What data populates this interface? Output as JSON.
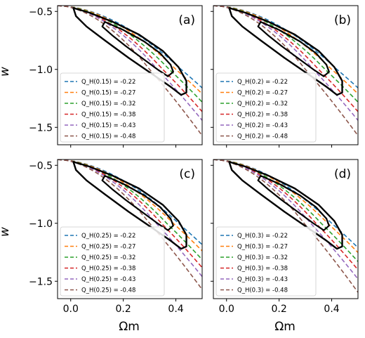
{
  "chart_data": {
    "type": "line",
    "xlabel": "Ωm",
    "ylabel": "w",
    "xlim": [
      -0.05,
      0.5
    ],
    "ylim": [
      -1.65,
      -0.45
    ],
    "xticks": [
      "0.0",
      "0.2",
      "0.4"
    ],
    "yticks": [
      "−0.5",
      "−1.0",
      "−1.5"
    ],
    "legend_placement": "lower-left",
    "colors": [
      "#1f77b4",
      "#ff7f0e",
      "#2ca02c",
      "#d62728",
      "#9467bd",
      "#8c564b"
    ],
    "contour_color": "#000000",
    "panels": [
      {
        "label": "(a)",
        "z": "0.15",
        "series": [
          {
            "name": "Q_H(0.15) = -0.22",
            "qh": -0.22,
            "omega_at_w_minus1": 0.42
          },
          {
            "name": "Q_H(0.15) = -0.27",
            "qh": -0.27,
            "omega_at_w_minus1": 0.4
          },
          {
            "name": "Q_H(0.15) = -0.32",
            "qh": -0.32,
            "omega_at_w_minus1": 0.375
          },
          {
            "name": "Q_H(0.15) = -0.38",
            "qh": -0.38,
            "omega_at_w_minus1": 0.35
          },
          {
            "name": "Q_H(0.15) = -0.43",
            "qh": -0.43,
            "omega_at_w_minus1": 0.33
          },
          {
            "name": "Q_H(0.15) = -0.48",
            "qh": -0.48,
            "omega_at_w_minus1": 0.3
          }
        ]
      },
      {
        "label": "(b)",
        "z": "0.2",
        "series": [
          {
            "name": "Q_H(0.2) = -0.22",
            "qh": -0.22,
            "omega_at_w_minus1": 0.42
          },
          {
            "name": "Q_H(0.2) = -0.27",
            "qh": -0.27,
            "omega_at_w_minus1": 0.4
          },
          {
            "name": "Q_H(0.2) = -0.32",
            "qh": -0.32,
            "omega_at_w_minus1": 0.375
          },
          {
            "name": "Q_H(0.2) = -0.38",
            "qh": -0.38,
            "omega_at_w_minus1": 0.35
          },
          {
            "name": "Q_H(0.2) = -0.43",
            "qh": -0.43,
            "omega_at_w_minus1": 0.33
          },
          {
            "name": "Q_H(0.2) = -0.48",
            "qh": -0.48,
            "omega_at_w_minus1": 0.3
          }
        ]
      },
      {
        "label": "(c)",
        "z": "0.25",
        "series": [
          {
            "name": "Q_H(0.25) = -0.22",
            "qh": -0.22,
            "omega_at_w_minus1": 0.41
          },
          {
            "name": "Q_H(0.25) = -0.27",
            "qh": -0.27,
            "omega_at_w_minus1": 0.39
          },
          {
            "name": "Q_H(0.25) = -0.32",
            "qh": -0.32,
            "omega_at_w_minus1": 0.365
          },
          {
            "name": "Q_H(0.25) = -0.38",
            "qh": -0.38,
            "omega_at_w_minus1": 0.345
          },
          {
            "name": "Q_H(0.25) = -0.43",
            "qh": -0.43,
            "omega_at_w_minus1": 0.325
          },
          {
            "name": "Q_H(0.25) = -0.48",
            "qh": -0.48,
            "omega_at_w_minus1": 0.3
          }
        ]
      },
      {
        "label": "(d)",
        "z": "0.3",
        "series": [
          {
            "name": "Q_H(0.3) = -0.22",
            "qh": -0.22,
            "omega_at_w_minus1": 0.4
          },
          {
            "name": "Q_H(0.3) = -0.27",
            "qh": -0.27,
            "omega_at_w_minus1": 0.385
          },
          {
            "name": "Q_H(0.3) = -0.32",
            "qh": -0.32,
            "omega_at_w_minus1": 0.36
          },
          {
            "name": "Q_H(0.3) = -0.38",
            "qh": -0.38,
            "omega_at_w_minus1": 0.34
          },
          {
            "name": "Q_H(0.3) = -0.43",
            "qh": -0.43,
            "omega_at_w_minus1": 0.32
          },
          {
            "name": "Q_H(0.3) = -0.48",
            "qh": -0.48,
            "omega_at_w_minus1": 0.295
          }
        ]
      }
    ],
    "contours": [
      {
        "level": "inner",
        "points": [
          [
            0.13,
            -0.59
          ],
          [
            0.2,
            -0.66
          ],
          [
            0.28,
            -0.76
          ],
          [
            0.34,
            -0.86
          ],
          [
            0.38,
            -0.96
          ],
          [
            0.39,
            -1.02
          ],
          [
            0.37,
            -1.06
          ],
          [
            0.33,
            -1.0
          ],
          [
            0.27,
            -0.9
          ],
          [
            0.21,
            -0.8
          ],
          [
            0.16,
            -0.71
          ],
          [
            0.12,
            -0.63
          ]
        ]
      },
      {
        "level": "outer",
        "points": [
          [
            0.01,
            -0.47
          ],
          [
            0.07,
            -0.51
          ],
          [
            0.16,
            -0.59
          ],
          [
            0.26,
            -0.7
          ],
          [
            0.35,
            -0.84
          ],
          [
            0.41,
            -0.98
          ],
          [
            0.44,
            -1.1
          ],
          [
            0.44,
            -1.2
          ],
          [
            0.42,
            -1.22
          ],
          [
            0.38,
            -1.15
          ],
          [
            0.31,
            -1.04
          ],
          [
            0.22,
            -0.9
          ],
          [
            0.13,
            -0.75
          ],
          [
            0.06,
            -0.63
          ],
          [
            0.02,
            -0.54
          ]
        ]
      }
    ]
  }
}
